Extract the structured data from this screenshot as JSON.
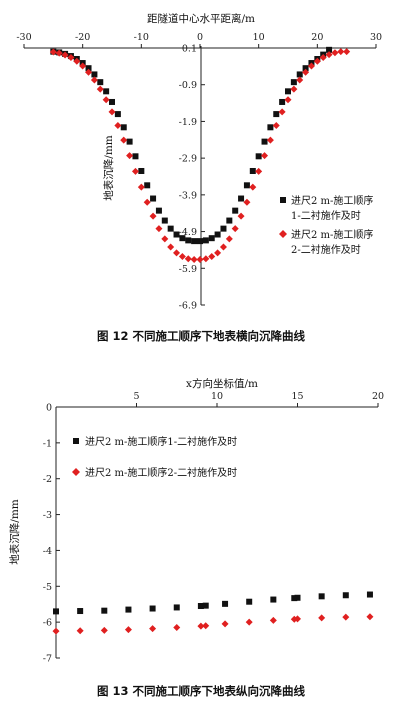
{
  "chart_data": [
    {
      "type": "scatter",
      "title": "",
      "caption": "图 12   不同施工顺序下地表横向沉降曲线",
      "xlabel": "距隧道中心水平距离/m",
      "ylabel": "地表沉降/mm",
      "xlim": [
        -30,
        30
      ],
      "ylim": [
        -6.9,
        0.1
      ],
      "xticks": [
        -30,
        -20,
        -10,
        0,
        10,
        20,
        30
      ],
      "yticks": [
        0.1,
        -0.9,
        -1.9,
        -2.9,
        -3.9,
        -4.9,
        -5.9,
        -6.9
      ],
      "x_axis_position": "top",
      "legend_position": "right",
      "grid": false,
      "legend": [
        "进尺2 m-施工顺序1-二衬施作及时",
        "进尺2 m-施工顺序2-二衬施作及时"
      ],
      "legend_lines": [
        [
          "进尺2 m-施工顺序",
          "1-二衬施作及时"
        ],
        [
          "进尺2 m-施工顺序",
          "2-二衬施作及时"
        ]
      ],
      "series": [
        {
          "name": "进尺2 m-施工顺序1-二衬施作及时",
          "marker": "square",
          "color": "#111111",
          "x": [
            -25,
            -24,
            -23,
            -22,
            -21,
            -20,
            -19,
            -18,
            -17,
            -16,
            -15,
            -14,
            -13,
            -12,
            -11,
            -10,
            -9,
            -8,
            -7,
            -6,
            -5,
            -4,
            -3,
            -2,
            -1,
            0,
            1,
            2,
            3,
            4,
            5,
            6,
            7,
            8,
            9,
            10,
            11,
            12,
            13,
            14,
            15,
            16,
            17,
            18,
            19,
            20,
            21,
            22
          ],
          "y": [
            0.0,
            -0.02,
            -0.06,
            -0.12,
            -0.2,
            -0.31,
            -0.45,
            -0.62,
            -0.83,
            -1.08,
            -1.37,
            -1.7,
            -2.06,
            -2.45,
            -2.85,
            -3.25,
            -3.64,
            -4.0,
            -4.33,
            -4.6,
            -4.82,
            -4.98,
            -5.08,
            -5.14,
            -5.16,
            -5.16,
            -5.14,
            -5.08,
            -4.98,
            -4.82,
            -4.6,
            -4.33,
            -4.0,
            -3.64,
            -3.25,
            -2.85,
            -2.45,
            -2.06,
            -1.7,
            -1.37,
            -1.08,
            -0.83,
            -0.62,
            -0.45,
            -0.31,
            -0.2,
            -0.08,
            0.05
          ]
        },
        {
          "name": "进尺2 m-施工顺序2-二衬施作及时",
          "marker": "diamond",
          "color": "#e02020",
          "x": [
            -25,
            -24,
            -23,
            -22,
            -21,
            -20,
            -19,
            -18,
            -17,
            -16,
            -15,
            -14,
            -13,
            -12,
            -11,
            -10,
            -9,
            -8,
            -7,
            -6,
            -5,
            -4,
            -3,
            -2,
            -1,
            0,
            1,
            2,
            3,
            4,
            5,
            6,
            7,
            8,
            9,
            10,
            11,
            12,
            13,
            14,
            15,
            16,
            17,
            18,
            19,
            20,
            21,
            22,
            23,
            24,
            25
          ],
          "y": [
            -0.01,
            -0.04,
            -0.09,
            -0.16,
            -0.26,
            -0.39,
            -0.56,
            -0.77,
            -1.02,
            -1.31,
            -1.64,
            -2.01,
            -2.41,
            -2.83,
            -3.26,
            -3.69,
            -4.1,
            -4.48,
            -4.82,
            -5.1,
            -5.32,
            -5.48,
            -5.58,
            -5.64,
            -5.66,
            -5.66,
            -5.64,
            -5.58,
            -5.48,
            -5.32,
            -5.1,
            -4.82,
            -4.48,
            -4.1,
            -3.69,
            -3.26,
            -2.83,
            -2.41,
            -2.01,
            -1.64,
            -1.31,
            -1.02,
            -0.77,
            -0.56,
            -0.39,
            -0.26,
            -0.16,
            -0.08,
            -0.03,
            0.0,
            0.0
          ]
        }
      ]
    },
    {
      "type": "scatter",
      "title": "",
      "caption": "图 13   不同施工顺序下地表纵向沉降曲线",
      "xlabel": "x方向坐标值/m",
      "ylabel": "地表沉降/mm",
      "xlim": [
        0,
        20
      ],
      "ylim": [
        -7.0,
        0
      ],
      "xticks": [
        5,
        10,
        15,
        20
      ],
      "yticks": [
        0,
        -1.0,
        -2.0,
        -3.0,
        -4.0,
        -5.0,
        -6.0,
        -7.0
      ],
      "x_axis_position": "top",
      "legend_position": "upper center",
      "grid": false,
      "legend": [
        "进尺2 m-施工顺序1-二衬施作及时",
        "进尺2 m-施工顺序2-二衬施作及时"
      ],
      "series": [
        {
          "name": "进尺2 m-施工顺序1-二衬施作及时",
          "marker": "square",
          "color": "#111111",
          "x": [
            0,
            1.5,
            3,
            4.5,
            6,
            7.5,
            9,
            9.3,
            10.5,
            12,
            13.5,
            14.8,
            15,
            16.5,
            18,
            19.5
          ],
          "y": [
            -5.7,
            -5.69,
            -5.68,
            -5.65,
            -5.62,
            -5.59,
            -5.55,
            -5.54,
            -5.49,
            -5.43,
            -5.37,
            -5.33,
            -5.32,
            -5.28,
            -5.25,
            -5.23
          ]
        },
        {
          "name": "进尺2 m-施工顺序2-二衬施作及时",
          "marker": "diamond",
          "color": "#e02020",
          "x": [
            0,
            1.5,
            3,
            4.5,
            6,
            7.5,
            9,
            9.3,
            10.5,
            12,
            13.5,
            14.8,
            15,
            16.5,
            18,
            19.5
          ],
          "y": [
            -6.25,
            -6.24,
            -6.23,
            -6.21,
            -6.18,
            -6.15,
            -6.11,
            -6.1,
            -6.05,
            -6.0,
            -5.95,
            -5.92,
            -5.91,
            -5.88,
            -5.86,
            -5.85
          ]
        }
      ]
    }
  ]
}
